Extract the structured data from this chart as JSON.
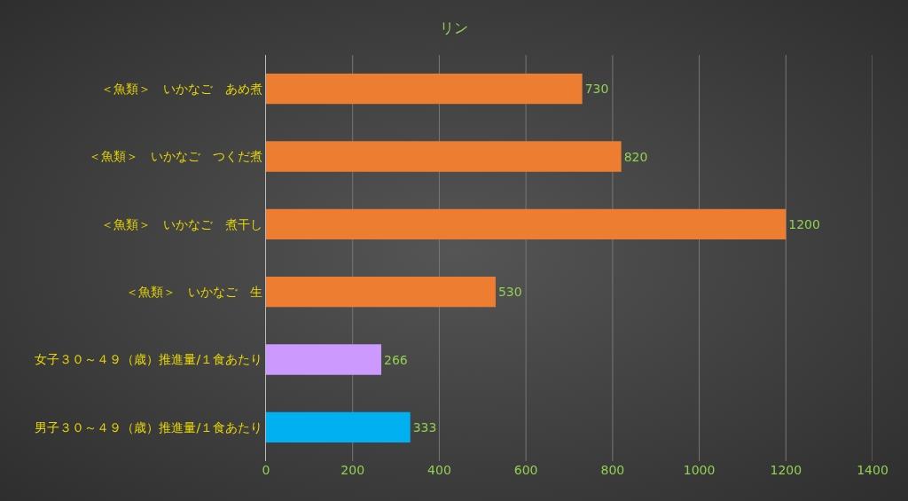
{
  "chart_data": {
    "type": "bar",
    "orientation": "horizontal",
    "title": "リン",
    "categories": [
      "＜魚類＞　いかなご　あめ煮",
      "＜魚類＞　いかなご　つくだ煮",
      "＜魚類＞　いかなご　煮干し",
      "＜魚類＞　いかなご　生",
      "女子３０～４９（歳）推進量/１食あたり",
      "男子３０～４９（歳）推進量/１食あたり"
    ],
    "values": [
      730,
      820,
      1200,
      530,
      266,
      333
    ],
    "colors": [
      "#ed7d31",
      "#ed7d31",
      "#ed7d31",
      "#ed7d31",
      "#cc99ff",
      "#00b0f0"
    ],
    "xlim": [
      0,
      1400
    ],
    "xticks": [
      0,
      200,
      400,
      600,
      800,
      1000,
      1200,
      1400
    ],
    "grid": "x",
    "data_labels": true
  }
}
